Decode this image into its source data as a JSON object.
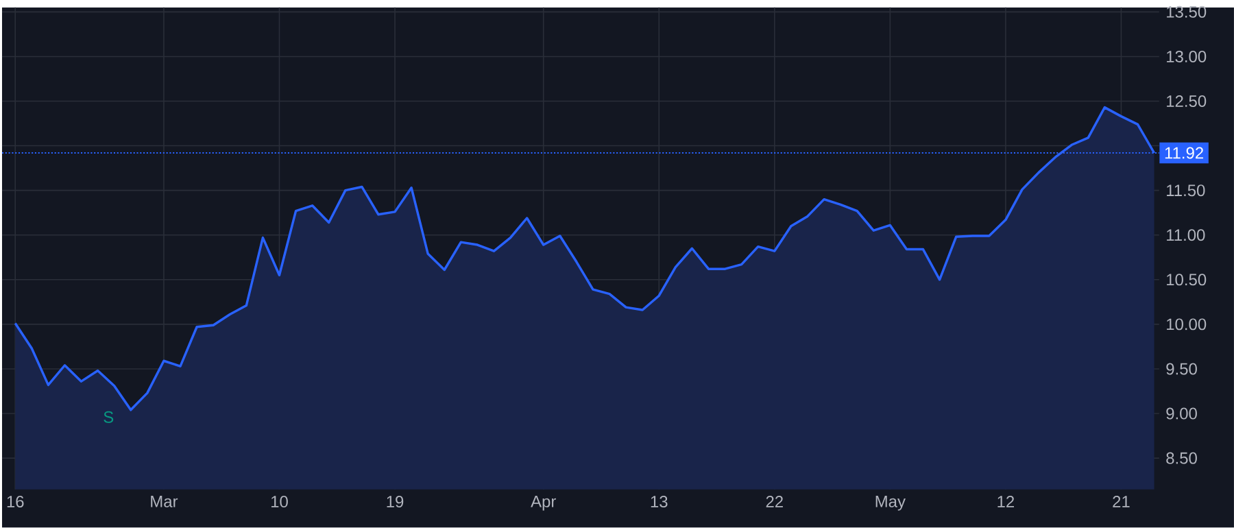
{
  "chart_data": {
    "type": "area",
    "categories": [
      "16",
      null,
      null,
      null,
      null,
      null,
      null,
      null,
      null,
      "Mar",
      null,
      null,
      null,
      null,
      null,
      null,
      "10",
      null,
      null,
      null,
      null,
      null,
      null,
      "19",
      null,
      null,
      null,
      null,
      null,
      null,
      null,
      null,
      "Apr",
      null,
      null,
      null,
      null,
      null,
      null,
      "13",
      null,
      null,
      null,
      null,
      null,
      null,
      "22",
      null,
      null,
      null,
      null,
      null,
      null,
      "May",
      null,
      null,
      null,
      null,
      null,
      null,
      "12",
      null,
      null,
      null,
      null,
      null,
      null,
      "21",
      null,
      null
    ],
    "series": [
      {
        "color": "#2962ff",
        "values": [
          10.01,
          9.73,
          9.32,
          9.54,
          9.36,
          9.48,
          9.31,
          9.04,
          9.23,
          9.59,
          9.53,
          9.97,
          9.99,
          10.11,
          10.21,
          10.97,
          10.55,
          11.27,
          11.33,
          11.14,
          11.5,
          11.54,
          11.23,
          11.26,
          11.53,
          10.79,
          10.61,
          10.92,
          10.89,
          10.82,
          10.97,
          11.19,
          10.89,
          10.99,
          10.7,
          10.39,
          10.34,
          10.19,
          10.16,
          10.32,
          10.64,
          10.85,
          10.62,
          10.62,
          10.67,
          10.87,
          10.82,
          11.1,
          11.21,
          11.4,
          11.34,
          11.27,
          11.05,
          11.11,
          10.84,
          10.84,
          10.5,
          10.98,
          10.99,
          10.99,
          11.17,
          11.51,
          11.7,
          11.87,
          12.01,
          12.09,
          12.43,
          12.33,
          12.24,
          11.92
        ]
      }
    ],
    "ylim": [
      8.15,
      13.55
    ],
    "yticks": [
      {
        "value": 8.5,
        "label": "8.50"
      },
      {
        "value": 9,
        "label": "9.00"
      },
      {
        "value": 9.5,
        "label": "9.50"
      },
      {
        "value": 10,
        "label": "10.00"
      },
      {
        "value": 10.5,
        "label": "10.50"
      },
      {
        "value": 11,
        "label": "11.00"
      },
      {
        "value": 11.5,
        "label": "11.50"
      },
      {
        "value": 12,
        "label": null
      },
      {
        "value": 12.5,
        "label": "12.50"
      },
      {
        "value": 13,
        "label": "13.00"
      },
      {
        "value": 13.5,
        "label": "13.50"
      }
    ],
    "ref_lines": [
      {
        "axis": "y",
        "value": 11.92,
        "label": "11.92",
        "color": "#2962ff",
        "line_style": "dotted"
      }
    ],
    "annotations": [
      "S"
    ],
    "grid": true,
    "marker": "none",
    "line_style": "solid"
  }
}
